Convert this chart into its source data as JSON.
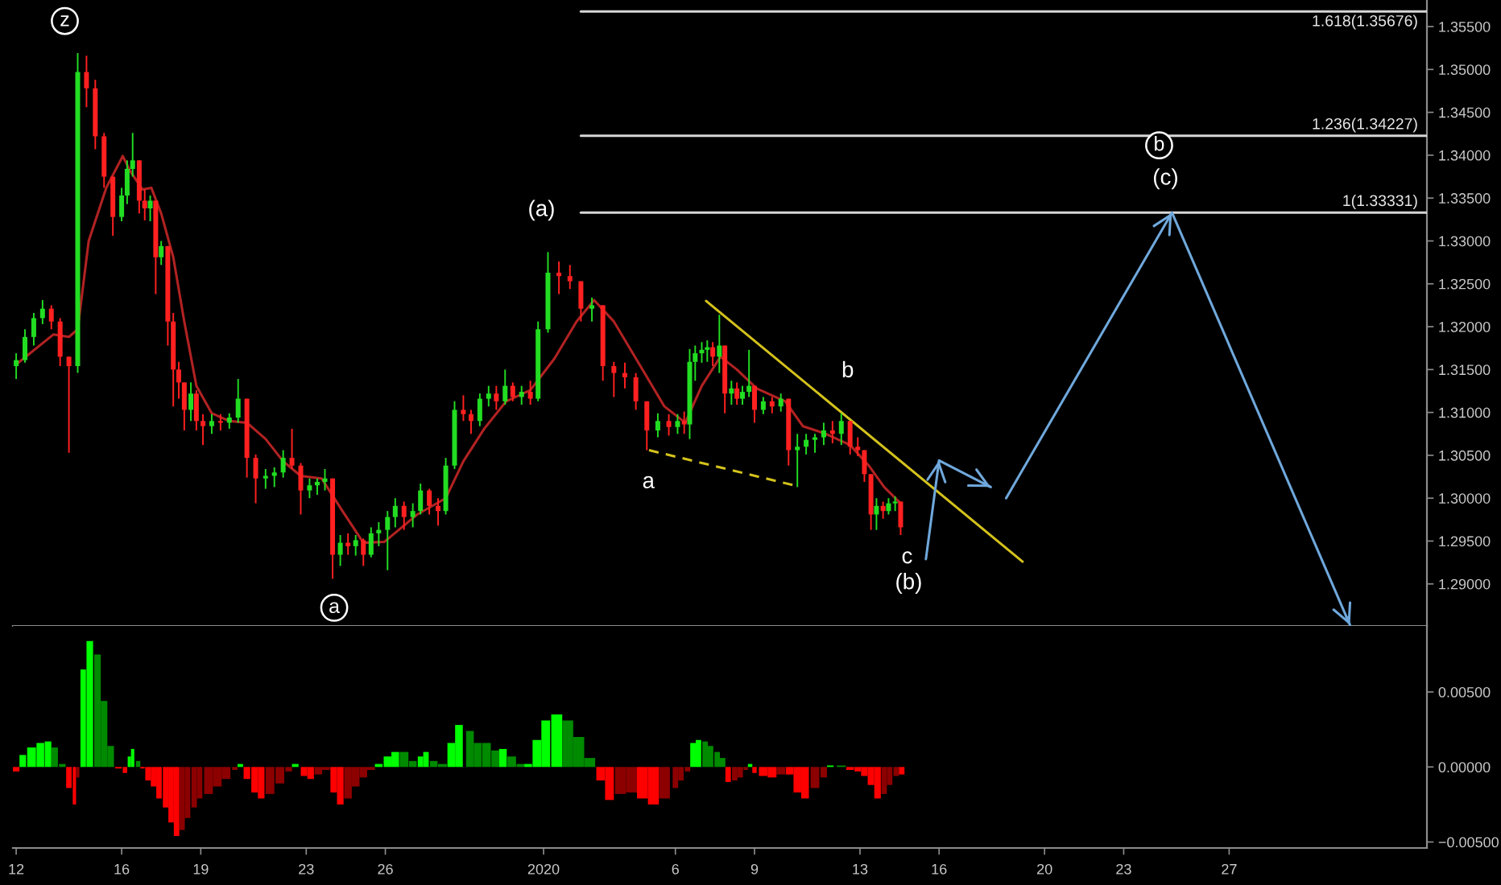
{
  "chart_data": [
    {
      "type": "candlestick",
      "x": [
        "2019-12-12T00:00",
        "2019-12-12T08:00",
        "2019-12-12T16:00",
        "2019-12-13T00:00",
        "2019-12-13T08:00",
        "2019-12-13T16:00",
        "2019-12-14T00:00",
        "2019-12-14T08:00",
        "2019-12-14T16:00",
        "2019-12-15T00:00",
        "2019-12-15T08:00",
        "2019-12-15T16:00",
        "2019-12-16T00:00",
        "2019-12-16T05:00",
        "2019-12-16T10:00",
        "2019-12-16T16:00",
        "2019-12-16T21:00",
        "2019-12-17T02:00",
        "2019-12-17T07:00",
        "2019-12-17T12:00",
        "2019-12-17T18:00",
        "2019-12-17T23:00",
        "2019-12-18T04:00",
        "2019-12-18T09:00",
        "2019-12-18T15:00",
        "2019-12-18T20:00",
        "2019-12-19T02:00",
        "2019-12-19T10:00",
        "2019-12-19T18:00",
        "2019-12-20T02:00",
        "2019-12-20T10:00",
        "2019-12-20T18:00",
        "2019-12-21T02:00",
        "2019-12-21T11:00",
        "2019-12-21T19:00",
        "2019-12-22T03:00",
        "2019-12-22T11:00",
        "2019-12-22T19:00",
        "2019-12-23T03:00",
        "2019-12-23T10:00",
        "2019-12-23T17:00",
        "2019-12-24T00:00",
        "2019-12-24T07:00",
        "2019-12-24T14:00",
        "2019-12-24T21:00",
        "2019-12-25T04:00",
        "2019-12-25T11:00",
        "2019-12-25T18:00",
        "2019-12-26T02:00",
        "2019-12-26T09:00",
        "2019-12-26T17:00",
        "2019-12-27T01:00",
        "2019-12-27T08:00",
        "2019-12-27T16:00",
        "2019-12-28T00:00",
        "2019-12-28T07:00",
        "2019-12-28T15:00",
        "2019-12-28T23:00",
        "2019-12-29T06:00",
        "2019-12-29T14:00",
        "2019-12-29T22:00",
        "2019-12-30T05:00",
        "2019-12-30T13:00",
        "2019-12-30T20:00",
        "2019-12-31T04:00",
        "2019-12-31T12:00",
        "2019-12-31T19:00",
        "2020-01-01T04:00",
        "2020-01-01T14:00",
        "2020-01-02T00:00",
        "2020-01-02T10:00",
        "2020-01-02T20:00",
        "2020-01-03T06:00",
        "2020-01-03T16:00",
        "2020-01-04T02:00",
        "2020-01-04T12:00",
        "2020-01-04T22:00",
        "2020-01-05T08:00",
        "2020-01-05T18:00",
        "2020-01-06T02:00",
        "2020-01-06T08:00",
        "2020-01-06T13:00",
        "2020-01-06T18:00",
        "2020-01-07T00:00",
        "2020-01-07T05:00",
        "2020-01-07T10:00",
        "2020-01-07T16:00",
        "2020-01-07T21:00",
        "2020-01-08T03:00",
        "2020-01-08T08:00",
        "2020-01-08T13:00",
        "2020-01-08T19:00",
        "2020-01-09T00:00",
        "2020-01-09T08:00",
        "2020-01-09T16:00",
        "2020-01-10T00:00",
        "2020-01-10T07:00",
        "2020-01-10T15:00",
        "2020-01-10T23:00",
        "2020-01-11T07:00",
        "2020-01-11T15:00",
        "2020-01-11T23:00",
        "2020-01-12T07:00",
        "2020-01-12T15:00",
        "2020-01-12T22:00",
        "2020-01-13T04:00",
        "2020-01-13T10:00",
        "2020-01-13T15:00",
        "2020-01-13T21:00",
        "2020-01-14T02:00",
        "2020-01-14T08:00",
        "2020-01-14T13:00"
      ],
      "ohlc": [
        [
          1.3154,
          1.3169,
          1.3139,
          1.3161
        ],
        [
          1.3161,
          1.3197,
          1.3158,
          1.3188
        ],
        [
          1.3188,
          1.3216,
          1.3178,
          1.321
        ],
        [
          1.321,
          1.3231,
          1.3203,
          1.3221
        ],
        [
          1.3221,
          1.3225,
          1.3197,
          1.3206
        ],
        [
          1.3206,
          1.321,
          1.3154,
          1.3165
        ],
        [
          1.3165,
          1.3165,
          1.3053,
          1.3154
        ],
        [
          1.3154,
          1.3519,
          1.3146,
          1.3497
        ],
        [
          1.3497,
          1.3516,
          1.3456,
          1.3478
        ],
        [
          1.3478,
          1.3488,
          1.3407,
          1.3422
        ],
        [
          1.3422,
          1.3426,
          1.3362,
          1.3375
        ],
        [
          1.3375,
          1.3375,
          1.3306,
          1.3328
        ],
        [
          1.3328,
          1.3362,
          1.3323,
          1.3353
        ],
        [
          1.3353,
          1.3394,
          1.3343,
          1.3384
        ],
        [
          1.3384,
          1.3426,
          1.3375,
          1.3394
        ],
        [
          1.3394,
          1.3394,
          1.3332,
          1.3347
        ],
        [
          1.3347,
          1.336,
          1.3324,
          1.3338
        ],
        [
          1.3338,
          1.3353,
          1.3323,
          1.3347
        ],
        [
          1.3347,
          1.3347,
          1.3238,
          1.3281
        ],
        [
          1.3281,
          1.33,
          1.3272,
          1.3294
        ],
        [
          1.3294,
          1.3294,
          1.3178,
          1.3206
        ],
        [
          1.3206,
          1.3216,
          1.3107,
          1.315
        ],
        [
          1.315,
          1.3159,
          1.3116,
          1.3135
        ],
        [
          1.3135,
          1.3135,
          1.3079,
          1.3103
        ],
        [
          1.3103,
          1.3135,
          1.309,
          1.3122
        ],
        [
          1.3122,
          1.3126,
          1.3079,
          1.309
        ],
        [
          1.309,
          1.3098,
          1.3062,
          1.3084
        ],
        [
          1.3084,
          1.3098,
          1.3075,
          1.309
        ],
        [
          1.309,
          1.3098,
          1.3079,
          1.3088
        ],
        [
          1.3088,
          1.3099,
          1.3081,
          1.3094
        ],
        [
          1.3094,
          1.3139,
          1.3088,
          1.3116
        ],
        [
          1.3116,
          1.3116,
          1.3024,
          1.3047
        ],
        [
          1.3047,
          1.3051,
          1.2994,
          1.3023
        ],
        [
          1.3023,
          1.3034,
          1.3011,
          1.3026
        ],
        [
          1.3026,
          1.3036,
          1.3013,
          1.303
        ],
        [
          1.303,
          1.3056,
          1.3024,
          1.3047
        ],
        [
          1.3047,
          1.3081,
          1.3034,
          1.3038
        ],
        [
          1.3038,
          1.3041,
          1.2981,
          1.3009
        ],
        [
          1.3009,
          1.3023,
          1.3,
          1.3015
        ],
        [
          1.3015,
          1.3023,
          1.3004,
          1.3019
        ],
        [
          1.3019,
          1.3034,
          1.3009,
          1.3023
        ],
        [
          1.3023,
          1.3023,
          1.2906,
          1.2934
        ],
        [
          1.2934,
          1.2957,
          1.2921,
          1.2948
        ],
        [
          1.2948,
          1.2959,
          1.2934,
          1.2944
        ],
        [
          1.2944,
          1.2957,
          1.2933,
          1.2951
        ],
        [
          1.2951,
          1.2953,
          1.2921,
          1.2934
        ],
        [
          1.2934,
          1.2966,
          1.2931,
          1.2959
        ],
        [
          1.2959,
          1.2972,
          1.2944,
          1.2963
        ],
        [
          1.2963,
          1.2985,
          1.2916,
          1.2978
        ],
        [
          1.2978,
          1.3,
          1.2966,
          1.2991
        ],
        [
          1.2991,
          1.2996,
          1.2963,
          1.2978
        ],
        [
          1.2978,
          1.2994,
          1.2966,
          1.2985
        ],
        [
          1.2985,
          1.3017,
          1.2981,
          1.3009
        ],
        [
          1.3009,
          1.3011,
          1.2981,
          1.2991
        ],
        [
          1.2991,
          1.3,
          1.2968,
          1.2985
        ],
        [
          1.2985,
          1.3047,
          1.2981,
          1.3038
        ],
        [
          1.3038,
          1.3113,
          1.3034,
          1.3103
        ],
        [
          1.3103,
          1.312,
          1.309,
          1.3098
        ],
        [
          1.3098,
          1.3103,
          1.3075,
          1.309
        ],
        [
          1.309,
          1.3122,
          1.3084,
          1.3116
        ],
        [
          1.3116,
          1.3131,
          1.3107,
          1.3122
        ],
        [
          1.3122,
          1.3131,
          1.3103,
          1.3113
        ],
        [
          1.3113,
          1.315,
          1.3109,
          1.3131
        ],
        [
          1.3131,
          1.3135,
          1.3113,
          1.3118
        ],
        [
          1.3118,
          1.3131,
          1.3109,
          1.3124
        ],
        [
          1.3124,
          1.3137,
          1.3109,
          1.3116
        ],
        [
          1.3116,
          1.3206,
          1.3113,
          1.3197
        ],
        [
          1.3197,
          1.3287,
          1.3193,
          1.3263
        ],
        [
          1.3263,
          1.3276,
          1.3238,
          1.3259
        ],
        [
          1.3259,
          1.3272,
          1.3244,
          1.3253
        ],
        [
          1.3253,
          1.3253,
          1.3206,
          1.3221
        ],
        [
          1.3221,
          1.3234,
          1.3206,
          1.3225
        ],
        [
          1.3225,
          1.3225,
          1.3137,
          1.3154
        ],
        [
          1.3154,
          1.3159,
          1.3118,
          1.3146
        ],
        [
          1.3146,
          1.3158,
          1.3128,
          1.3141
        ],
        [
          1.3141,
          1.3146,
          1.3103,
          1.3113
        ],
        [
          1.3113,
          1.3113,
          1.3056,
          1.3079
        ],
        [
          1.3079,
          1.3099,
          1.3071,
          1.309
        ],
        [
          1.309,
          1.3098,
          1.3073,
          1.3083
        ],
        [
          1.3083,
          1.3098,
          1.3075,
          1.309
        ],
        [
          1.309,
          1.3101,
          1.3075,
          1.3086
        ],
        [
          1.3086,
          1.3174,
          1.3069,
          1.3159
        ],
        [
          1.3159,
          1.3178,
          1.3137,
          1.3169
        ],
        [
          1.3169,
          1.3182,
          1.3158,
          1.3173
        ],
        [
          1.3173,
          1.3184,
          1.3159,
          1.3176
        ],
        [
          1.3176,
          1.3182,
          1.3154,
          1.3165
        ],
        [
          1.3165,
          1.3214,
          1.3146,
          1.3178
        ],
        [
          1.3178,
          1.3178,
          1.3099,
          1.3122
        ],
        [
          1.3122,
          1.3137,
          1.3109,
          1.3128
        ],
        [
          1.3128,
          1.3135,
          1.3109,
          1.3116
        ],
        [
          1.3116,
          1.3131,
          1.3109,
          1.3124
        ],
        [
          1.3124,
          1.3173,
          1.3118,
          1.3131
        ],
        [
          1.3131,
          1.3131,
          1.3088,
          1.3103
        ],
        [
          1.3103,
          1.3118,
          1.3098,
          1.3113
        ],
        [
          1.3113,
          1.3118,
          1.3099,
          1.3107
        ],
        [
          1.3107,
          1.3122,
          1.3101,
          1.3116
        ],
        [
          1.3116,
          1.3116,
          1.3038,
          1.3056
        ],
        [
          1.3056,
          1.3075,
          1.3013,
          1.306
        ],
        [
          1.306,
          1.3075,
          1.3051,
          1.3068
        ],
        [
          1.3068,
          1.3075,
          1.3053,
          1.3071
        ],
        [
          1.3071,
          1.3088,
          1.3062,
          1.3079
        ],
        [
          1.3079,
          1.309,
          1.3064,
          1.3075
        ],
        [
          1.3075,
          1.3099,
          1.3062,
          1.309
        ],
        [
          1.309,
          1.309,
          1.3051,
          1.306
        ],
        [
          1.306,
          1.3071,
          1.3049,
          1.3056
        ],
        [
          1.3056,
          1.3056,
          1.3019,
          1.3028
        ],
        [
          1.3028,
          1.3028,
          1.2963,
          1.2981
        ],
        [
          1.2981,
          1.3,
          1.2963,
          1.2991
        ],
        [
          1.2991,
          1.2996,
          1.2976,
          1.2985
        ],
        [
          1.2985,
          1.3,
          1.2981,
          1.2994
        ],
        [
          1.2994,
          1.3002,
          1.2985,
          1.2996
        ],
        [
          1.2996,
          1.2996,
          1.2957,
          1.2966
        ]
      ],
      "colors": [
        "#22dd22",
        "#22dd22",
        "#22dd22",
        "#22dd22",
        "#ff2020",
        "#ff2020",
        "#ff2020",
        "#22dd22",
        "#ff2020",
        "#ff2020",
        "#ff2020",
        "#ff2020",
        "#22dd22",
        "#22dd22",
        "#22dd22",
        "#ff2020",
        "#ff2020",
        "#22dd22",
        "#ff2020",
        "#22dd22",
        "#ff2020",
        "#ff2020",
        "#ff2020",
        "#ff2020",
        "#22dd22",
        "#ff2020",
        "#ff2020",
        "#22dd22",
        "#ff2020",
        "#22dd22",
        "#22dd22",
        "#ff2020",
        "#ff2020",
        "#22dd22",
        "#22dd22",
        "#22dd22",
        "#ff2020",
        "#ff2020",
        "#22dd22",
        "#22dd22",
        "#22dd22",
        "#ff2020",
        "#22dd22",
        "#ff2020",
        "#22dd22",
        "#ff2020",
        "#22dd22",
        "#22dd22",
        "#22dd22",
        "#22dd22",
        "#ff2020",
        "#22dd22",
        "#22dd22",
        "#ff2020",
        "#ff2020",
        "#22dd22",
        "#22dd22",
        "#ff2020",
        "#ff2020",
        "#22dd22",
        "#22dd22",
        "#ff2020",
        "#22dd22",
        "#ff2020",
        "#22dd22",
        "#ff2020",
        "#22dd22",
        "#22dd22",
        "#ff2020",
        "#ff2020",
        "#ff2020",
        "#22dd22",
        "#ff2020",
        "#ff2020",
        "#ff2020",
        "#ff2020",
        "#ff2020",
        "#22dd22",
        "#ff2020",
        "#22dd22",
        "#ff2020",
        "#22dd22",
        "#22dd22",
        "#22dd22",
        "#22dd22",
        "#ff2020",
        "#22dd22",
        "#ff2020",
        "#22dd22",
        "#ff2020",
        "#22dd22",
        "#22dd22",
        "#ff2020",
        "#22dd22",
        "#ff2020",
        "#22dd22",
        "#ff2020",
        "#22dd22",
        "#22dd22",
        "#22dd22",
        "#22dd22",
        "#ff2020",
        "#22dd22",
        "#ff2020",
        "#ff2020",
        "#ff2020",
        "#ff2020",
        "#22dd22",
        "#ff2020",
        "#22dd22",
        "#22dd22",
        "#ff2020"
      ],
      "series": [
        {
          "type": "line",
          "color": "#b22222",
          "x": [
            "2019-12-12T00:00",
            "2019-12-13T10:00",
            "2019-12-14T00:00",
            "2019-12-14T08:00",
            "2019-12-14T18:00",
            "2019-12-15T10:00",
            "2019-12-16T01:00",
            "2019-12-16T08:00",
            "2019-12-16T19:00",
            "2019-12-17T03:00",
            "2019-12-17T12:00",
            "2019-12-17T23:00",
            "2019-12-18T09:00",
            "2019-12-18T20:00",
            "2019-12-19T10:00",
            "2019-12-20T02:00",
            "2019-12-20T18:00",
            "2019-12-21T11:00",
            "2019-12-22T03:00",
            "2019-12-22T19:00",
            "2019-12-23T14:00",
            "2019-12-24T08:00",
            "2019-12-25T04:00",
            "2019-12-25T23:00",
            "2019-12-27T05:00",
            "2019-12-28T07:00",
            "2019-12-28T23:00",
            "2019-12-29T18:00",
            "2019-12-30T14:00",
            "2019-12-31T12:00",
            "2020-01-01T10:00",
            "2020-01-02T06:00",
            "2020-01-02T22:00",
            "2020-01-03T16:00",
            "2020-01-04T18:00",
            "2020-01-05T14:00",
            "2020-01-06T09:00",
            "2020-01-07T00:00",
            "2020-01-07T17:00",
            "2020-01-08T08:00",
            "2020-01-09T02:00",
            "2020-01-10T04:00",
            "2020-01-10T20:00",
            "2020-01-11T17:00",
            "2020-01-12T15:00",
            "2020-01-13T08:00",
            "2020-01-13T22:00",
            "2020-01-14T13:00"
          ],
          "values": [
            1.3156,
            1.3191,
            1.3188,
            1.3197,
            1.33,
            1.3362,
            1.3399,
            1.3381,
            1.336,
            1.3362,
            1.3332,
            1.3281,
            1.3206,
            1.3131,
            1.3099,
            1.309,
            1.3088,
            1.3069,
            1.3043,
            1.3026,
            1.3023,
            1.2987,
            1.2948,
            1.2949,
            1.2981,
            1.3,
            1.3043,
            1.3081,
            1.3113,
            1.3126,
            1.3163,
            1.3206,
            1.3231,
            1.3206,
            1.315,
            1.3107,
            1.3088,
            1.3131,
            1.3165,
            1.315,
            1.3128,
            1.3113,
            1.3084,
            1.3075,
            1.3062,
            1.3038,
            1.3013,
            1.2994
          ]
        },
        {
          "type": "line",
          "name": "1.618(1.35676)",
          "color": "#d6d6d6",
          "x": [
            "2020-01-02T10:00",
            "2020-02-03T12:00"
          ],
          "values": [
            1.35676,
            1.35676
          ]
        },
        {
          "type": "line",
          "name": "1.236(1.34227)",
          "color": "#d6d6d6",
          "x": [
            "2020-01-02T10:00",
            "2020-02-03T12:00"
          ],
          "values": [
            1.34227,
            1.34227
          ]
        },
        {
          "type": "line",
          "name": "1(1.33331)",
          "color": "#d6d6d6",
          "x": [
            "2020-01-02T10:00",
            "2020-02-03T12:00"
          ],
          "values": [
            1.33331,
            1.33331
          ]
        },
        {
          "type": "line",
          "color": "#d4c21c",
          "x": [
            "2020-01-07T04:00",
            "2020-01-19T04:00"
          ],
          "values": [
            1.323,
            1.2926
          ]
        },
        {
          "type": "line",
          "color": "#d4c21c",
          "line_style": "dashed",
          "x": [
            "2020-01-05T00:00",
            "2020-01-10T12:00"
          ],
          "values": [
            1.3056,
            1.3015
          ]
        },
        {
          "type": "line",
          "color": "#6fa8dc",
          "x": [
            "2020-01-15T12:00",
            "2020-01-16T00:00",
            "2020-01-17T23:00",
            "2020-01-18T06:00",
            "2020-01-18T13:00",
            "2020-01-24T20:00",
            "2020-01-31T14:00"
          ],
          "values": [
            1.2929,
            1.3044,
            1.3013,
            null,
            1.3,
            1.3333,
            1.2852
          ]
        }
      ],
      "annotations": [
        {
          "text": "z",
          "x": "2019-12-14T08:00",
          "y": 1.3519
        },
        {
          "text": "a",
          "x": "2019-12-24T00:00",
          "y": 1.2906
        },
        {
          "text": "(a)",
          "x": "2020-01-01T04:00",
          "y": 1.3287
        },
        {
          "text": "a",
          "x": "2020-01-04T22:00",
          "y": 1.3056
        },
        {
          "text": "b",
          "x": "2020-01-12T07:00",
          "y": 1.3099
        },
        {
          "text": "c",
          "x": "2020-01-14T13:00",
          "y": 1.2957
        },
        {
          "text": "(b)",
          "x": "2020-01-14T13:00",
          "y": 1.2957
        },
        {
          "text": "b",
          "x": "2020-01-24T20:00",
          "y": 1.34227
        },
        {
          "text": "(c)",
          "x": "2020-01-24T20:00",
          "y": 1.3333
        }
      ],
      "xlim": [
        "2019-12-11T21:00",
        "2020-02-03T12:00"
      ],
      "ylim": [
        1.2851,
        1.3581
      ],
      "yticks": [
        {
          "value": 1.29,
          "label": "1.29000"
        },
        {
          "value": 1.295,
          "label": "1.29500"
        },
        {
          "value": 1.3,
          "label": "1.30000"
        },
        {
          "value": 1.305,
          "label": "1.30500"
        },
        {
          "value": 1.31,
          "label": "1.31000"
        },
        {
          "value": 1.315,
          "label": "1.31500"
        },
        {
          "value": 1.32,
          "label": "1.32000"
        },
        {
          "value": 1.325,
          "label": "1.32500"
        },
        {
          "value": 1.33,
          "label": "1.33000"
        },
        {
          "value": 1.335,
          "label": "1.33500"
        },
        {
          "value": 1.34,
          "label": "1.34000"
        },
        {
          "value": 1.345,
          "label": "1.34500"
        },
        {
          "value": 1.35,
          "label": "1.35000"
        },
        {
          "value": 1.355,
          "label": "1.35500"
        }
      ],
      "tick_labels": "y"
    },
    {
      "type": "bar",
      "x": [
        "2019-12-12T00:00",
        "2019-12-12T06:00",
        "2019-12-12T14:00",
        "2019-12-12T22:00",
        "2019-12-13T05:00",
        "2019-12-13T11:00",
        "2019-12-13T18:00",
        "2019-12-14T00:00",
        "2019-12-14T05:00",
        "2019-12-14T08:00",
        "2019-12-14T13:00",
        "2019-12-14T19:00",
        "2019-12-15T02:00",
        "2019-12-15T08:00",
        "2019-12-15T14:00",
        "2019-12-15T21:00",
        "2019-12-16T03:00",
        "2019-12-16T07:00",
        "2019-12-16T10:00",
        "2019-12-16T15:00",
        "2019-12-16T19:00",
        "2019-12-17T00:00",
        "2019-12-17T05:00",
        "2019-12-17T10:00",
        "2019-12-17T16:00",
        "2019-12-17T21:00",
        "2019-12-18T02:00",
        "2019-12-18T07:00",
        "2019-12-18T12:00",
        "2019-12-18T18:00",
        "2019-12-18T23:00",
        "2019-12-19T07:00",
        "2019-12-19T15:00",
        "2019-12-19T23:00",
        "2019-12-20T07:00",
        "2019-12-20T12:00",
        "2019-12-20T18:00",
        "2019-12-21T01:00",
        "2019-12-21T07:00",
        "2019-12-21T15:00",
        "2019-12-22T00:00",
        "2019-12-22T08:00",
        "2019-12-22T14:00",
        "2019-12-22T22:00",
        "2019-12-23T04:00",
        "2019-12-23T11:00",
        "2019-12-23T18:00",
        "2019-12-24T01:00",
        "2019-12-24T07:00",
        "2019-12-24T14:00",
        "2019-12-24T21:00",
        "2019-12-25T04:00",
        "2019-12-25T11:00",
        "2019-12-25T18:00",
        "2019-12-26T02:00",
        "2019-12-26T09:00",
        "2019-12-26T17:00",
        "2019-12-27T01:00",
        "2019-12-27T08:00",
        "2019-12-27T13:00",
        "2019-12-27T20:00",
        "2019-12-28T04:00",
        "2019-12-28T12:00",
        "2019-12-28T19:00",
        "2019-12-29T05:00",
        "2019-12-29T12:00",
        "2019-12-29T20:00",
        "2019-12-30T04:00",
        "2019-12-30T11:00",
        "2019-12-30T19:00",
        "2019-12-31T03:00",
        "2019-12-31T10:00",
        "2019-12-31T18:00",
        "2020-01-01T02:00",
        "2020-01-01T12:00",
        "2020-01-01T22:00",
        "2020-01-02T08:00",
        "2020-01-02T18:00",
        "2020-01-03T04:00",
        "2020-01-03T12:00",
        "2020-01-03T22:00",
        "2020-01-04T08:00",
        "2020-01-04T18:00",
        "2020-01-05T04:00",
        "2020-01-05T14:00",
        "2020-01-06T00:00",
        "2020-01-06T05:00",
        "2020-01-06T11:00",
        "2020-01-06T16:00",
        "2020-01-06T21:00",
        "2020-01-07T03:00",
        "2020-01-07T08:00",
        "2020-01-07T14:00",
        "2020-01-07T19:00",
        "2020-01-08T00:00",
        "2020-01-08T06:00",
        "2020-01-08T11:00",
        "2020-01-08T16:00",
        "2020-01-08T20:00",
        "2020-01-09T00:00",
        "2020-01-09T08:00",
        "2020-01-09T16:00",
        "2020-01-10T00:00",
        "2020-01-10T08:00",
        "2020-01-10T15:00",
        "2020-01-10T22:00",
        "2020-01-11T07:00",
        "2020-01-11T15:00",
        "2020-01-11T21:00",
        "2020-01-12T07:00",
        "2020-01-12T15:00",
        "2020-01-12T22:00",
        "2020-01-13T04:00",
        "2020-01-13T10:00",
        "2020-01-13T16:00",
        "2020-01-13T22:00",
        "2020-01-14T03:00",
        "2020-01-14T09:00",
        "2020-01-14T14:00"
      ],
      "values": [
        -0.0003,
        0.0008,
        0.0013,
        0.0016,
        0.0017,
        0.0013,
        0.0002,
        -0.0014,
        -0.0025,
        -0.0007,
        0.0065,
        0.0084,
        0.0075,
        0.0044,
        0.0014,
        -0.0001,
        -0.0004,
        0.0007,
        0.0012,
        0.0004,
        -0.0001,
        -0.0009,
        -0.0013,
        -0.0021,
        -0.0027,
        -0.0037,
        -0.0046,
        -0.0042,
        -0.0034,
        -0.0027,
        -0.0021,
        -0.0018,
        -0.0013,
        -0.0008,
        -0.0002,
        0.0002,
        -0.0008,
        -0.0017,
        -0.0021,
        -0.0018,
        -0.0011,
        -0.0003,
        0.0002,
        -0.0006,
        -0.0008,
        -0.0005,
        -0.0002,
        -0.0017,
        -0.0025,
        -0.0021,
        -0.0013,
        -0.0007,
        -0.0002,
        0.0002,
        0.0007,
        0.001,
        0.001,
        0.0004,
        0.0007,
        0.001,
        0.0004,
        0.0002,
        0.0016,
        0.0028,
        0.0024,
        0.0016,
        0.0016,
        0.0011,
        0.0012,
        0.0007,
        0.0002,
        0.0002,
        0.0018,
        0.0031,
        0.0035,
        0.0031,
        0.002,
        0.0006,
        -0.0009,
        -0.0022,
        -0.0018,
        -0.0017,
        -0.0021,
        -0.0025,
        -0.0021,
        -0.0014,
        -0.0009,
        -0.0003,
        0.0016,
        0.0018,
        0.0017,
        0.0014,
        0.001,
        0.0006,
        -0.001,
        -0.0009,
        -0.0007,
        -0.0002,
        0.0002,
        -0.0004,
        -0.0006,
        -0.0007,
        -0.0005,
        -0.0005,
        -0.0017,
        -0.0021,
        -0.0014,
        -0.0007,
        0.0001,
        0.0001,
        -0.0002,
        -0.0003,
        -0.0006,
        -0.0012,
        -0.0021,
        -0.0018,
        -0.0012,
        -0.0006,
        -0.0005
      ],
      "colors": [
        "#ff0000",
        "#00ff00",
        "#00ff00",
        "#00ff00",
        "#00ff00",
        "#008a00",
        "#008a00",
        "#ff0000",
        "#ff0000",
        "#8c0000",
        "#00ff00",
        "#00ff00",
        "#008a00",
        "#008a00",
        "#008a00",
        "#ff0000",
        "#ff0000",
        "#00ff00",
        "#00ff00",
        "#008a00",
        "#ff0000",
        "#ff0000",
        "#ff0000",
        "#ff0000",
        "#ff0000",
        "#ff0000",
        "#ff0000",
        "#8c0000",
        "#8c0000",
        "#8c0000",
        "#8c0000",
        "#8c0000",
        "#8c0000",
        "#8c0000",
        "#8c0000",
        "#00ff00",
        "#ff0000",
        "#ff0000",
        "#ff0000",
        "#8c0000",
        "#8c0000",
        "#8c0000",
        "#00ff00",
        "#ff0000",
        "#ff0000",
        "#8c0000",
        "#8c0000",
        "#ff0000",
        "#ff0000",
        "#8c0000",
        "#8c0000",
        "#8c0000",
        "#8c0000",
        "#00ff00",
        "#00ff00",
        "#00ff00",
        "#008a00",
        "#008a00",
        "#00ff00",
        "#00ff00",
        "#008a00",
        "#008a00",
        "#00ff00",
        "#00ff00",
        "#008a00",
        "#008a00",
        "#008a00",
        "#008a00",
        "#00ff00",
        "#008a00",
        "#008a00",
        "#00ff00",
        "#00ff00",
        "#00ff00",
        "#00ff00",
        "#008a00",
        "#008a00",
        "#008a00",
        "#ff0000",
        "#ff0000",
        "#8c0000",
        "#8c0000",
        "#ff0000",
        "#ff0000",
        "#8c0000",
        "#8c0000",
        "#8c0000",
        "#8c0000",
        "#00ff00",
        "#00ff00",
        "#008a00",
        "#008a00",
        "#008a00",
        "#008a00",
        "#ff0000",
        "#8c0000",
        "#8c0000",
        "#8c0000",
        "#00ff00",
        "#ff0000",
        "#ff0000",
        "#ff0000",
        "#8c0000",
        "#ff0000",
        "#ff0000",
        "#ff0000",
        "#8c0000",
        "#8c0000",
        "#00ff00",
        "#008a00",
        "#ff0000",
        "#ff0000",
        "#ff0000",
        "#ff0000",
        "#ff0000",
        "#8c0000",
        "#8c0000",
        "#8c0000",
        "#ff0000"
      ],
      "xlim": [
        "2019-12-11T21:00",
        "2020-02-03T12:00"
      ],
      "ylim": [
        -0.0054,
        0.0094
      ],
      "xticks": [
        {
          "value": "2019-12-12",
          "label": "12"
        },
        {
          "value": "2019-12-16",
          "label": "16"
        },
        {
          "value": "2019-12-19",
          "label": "19"
        },
        {
          "value": "2019-12-23",
          "label": "23"
        },
        {
          "value": "2019-12-26",
          "label": "26"
        },
        {
          "value": "2020-01-01",
          "label": "2020"
        },
        {
          "value": "2020-01-06",
          "label": "6"
        },
        {
          "value": "2020-01-09",
          "label": "9"
        },
        {
          "value": "2020-01-13",
          "label": "13"
        },
        {
          "value": "2020-01-16",
          "label": "16"
        },
        {
          "value": "2020-01-20",
          "label": "20"
        },
        {
          "value": "2020-01-23",
          "label": "23"
        },
        {
          "value": "2020-01-27",
          "label": "27"
        }
      ],
      "yticks": [
        {
          "value": 0.005,
          "label": "0.00500"
        },
        {
          "value": 0,
          "label": "0.00000"
        },
        {
          "value": -0.005,
          "label": "−0.00500"
        }
      ]
    }
  ]
}
